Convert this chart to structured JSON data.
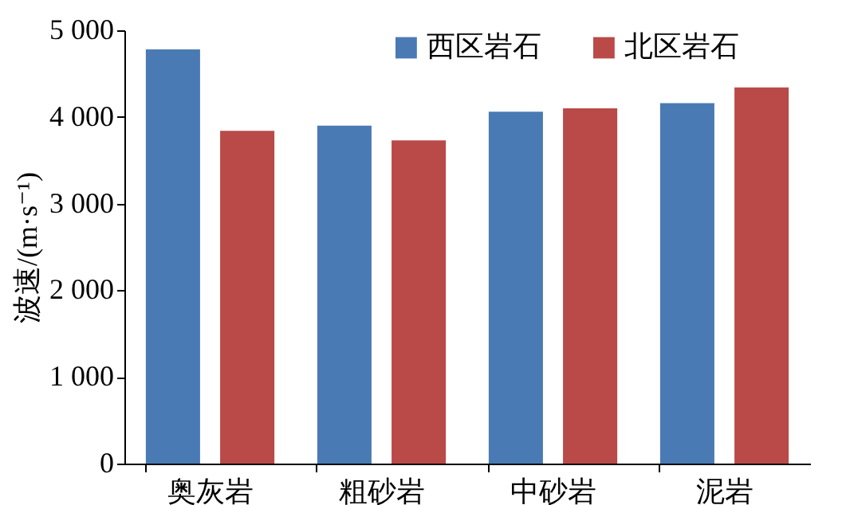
{
  "chart_data": {
    "type": "bar",
    "ylabel": "波速/(m·s⁻¹)",
    "categories": [
      "奥灰岩",
      "粗砂岩",
      "中砂岩",
      "泥岩"
    ],
    "series": [
      {
        "name": "西区岩石",
        "color": "#4a7ab4",
        "values": [
          4780,
          3900,
          4060,
          4160
        ]
      },
      {
        "name": "北区岩石",
        "color": "#b94a48",
        "values": [
          3840,
          3730,
          4100,
          4340
        ]
      }
    ],
    "ylim": [
      0,
      5000
    ],
    "yticks": [
      0,
      {
        "value": 1000,
        "label": "1 000"
      },
      {
        "value": 2000,
        "label": "2 000"
      },
      {
        "value": 3000,
        "label": "3 000"
      },
      {
        "value": 4000,
        "label": "4 000"
      },
      {
        "value": 5000,
        "label": "5 000"
      }
    ],
    "grid": false,
    "legend": "top"
  }
}
